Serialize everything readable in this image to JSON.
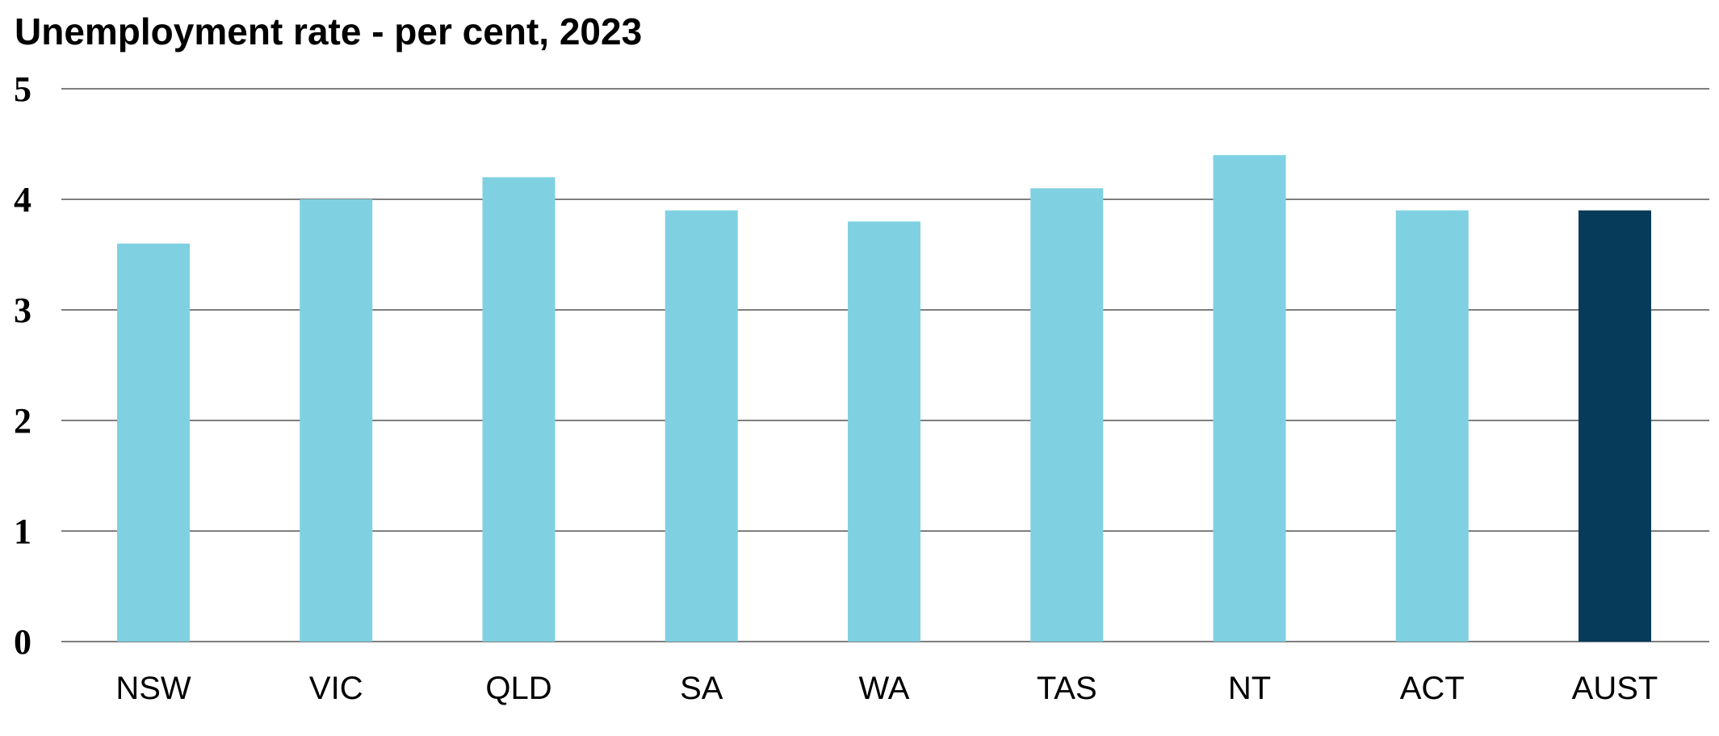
{
  "chart_data": {
    "type": "bar",
    "title": "Unemployment rate - per cent, 2023",
    "xlabel": "",
    "ylabel": "",
    "categories": [
      "NSW",
      "VIC",
      "QLD",
      "SA",
      "WA",
      "TAS",
      "NT",
      "ACT",
      "AUST"
    ],
    "values": [
      3.6,
      4.0,
      4.2,
      3.9,
      3.8,
      4.1,
      4.4,
      3.9,
      3.9
    ],
    "ylim": [
      0,
      5
    ],
    "yticks": [
      0,
      1,
      2,
      3,
      4,
      5
    ],
    "grid": true,
    "legend": "none",
    "colors": {
      "bar": "#7fd1e2",
      "highlight": "#063b5a",
      "gridline": "#555555"
    },
    "highlight_category": "AUST"
  }
}
